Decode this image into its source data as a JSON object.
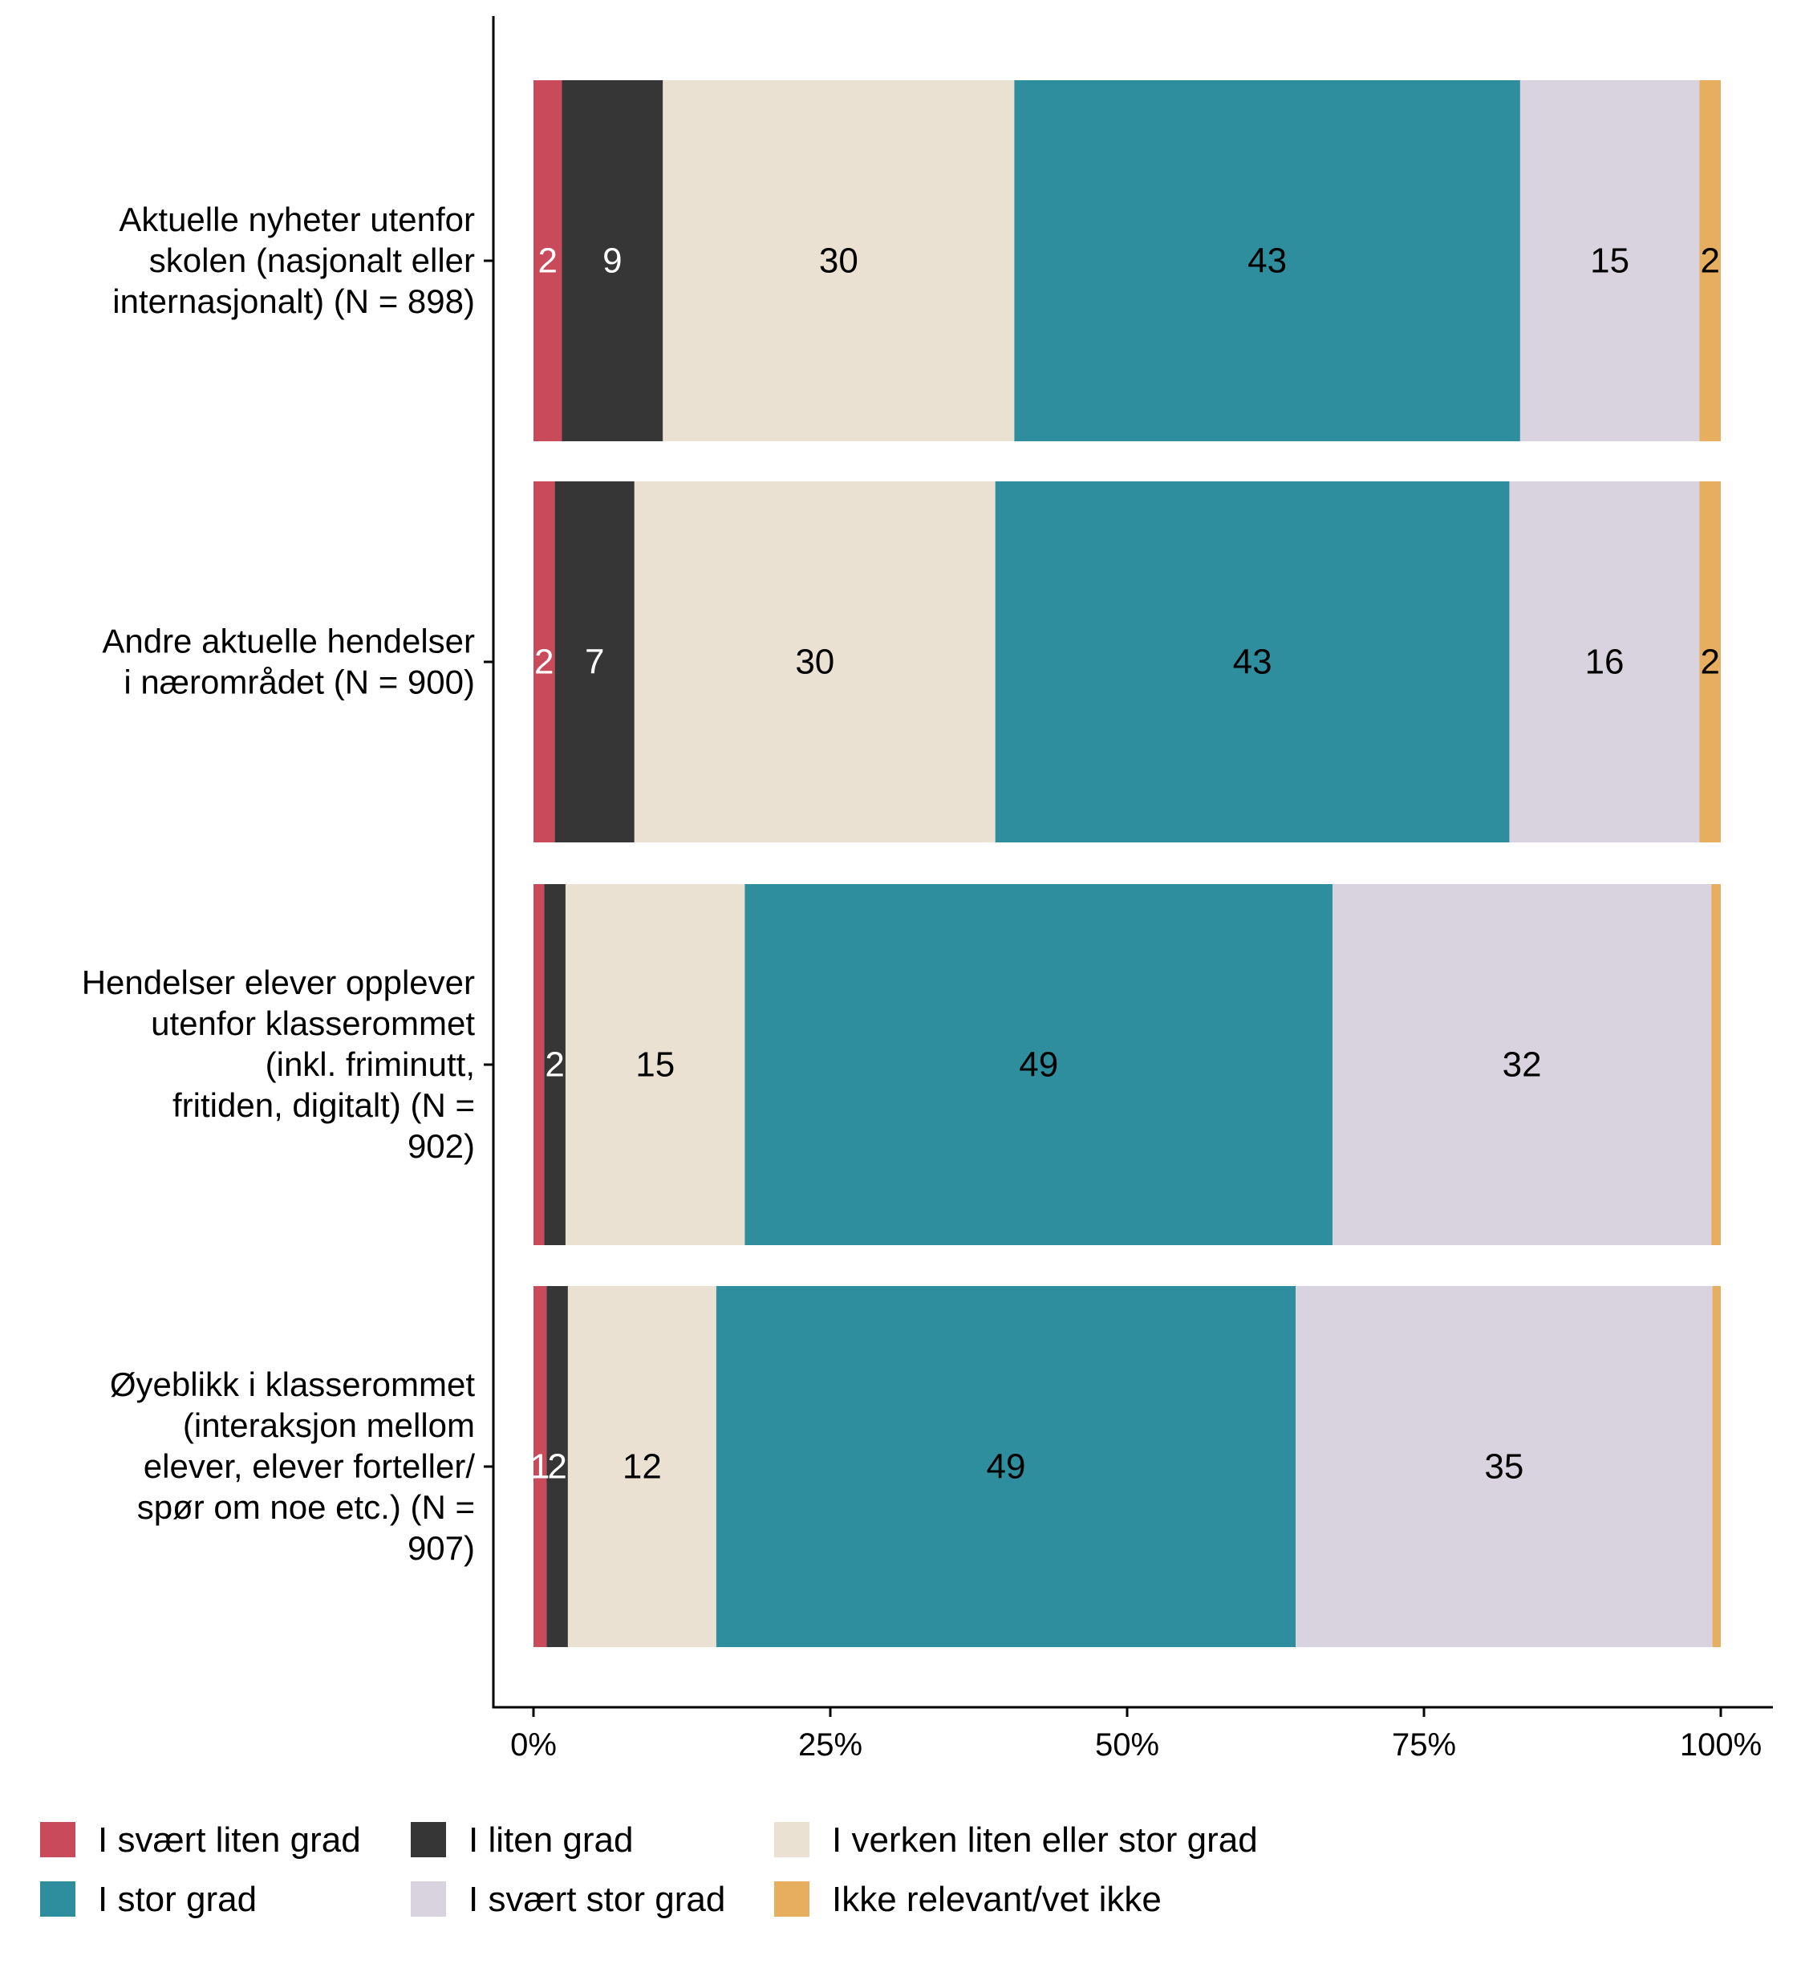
{
  "chart_data": {
    "type": "bar",
    "orientation": "horizontal",
    "stacked": true,
    "title": "",
    "xlabel": "",
    "ylabel": "",
    "xlim": [
      0,
      100
    ],
    "x_ticks": [
      "0%",
      "25%",
      "50%",
      "75%",
      "100%"
    ],
    "categories": [
      "Aktuelle nyheter utenfor skolen (nasjonalt eller internasjonalt) (N = 898)",
      "Andre aktuelle hendelser i nærområdet (N = 900)",
      "Hendelser elever opplever utenfor klasserommet (inkl. friminutt, fritiden, digitalt) (N = 902)",
      "Øyeblikk i klasserommet (interaksjon mellom elever, elever forteller/ spør om noe etc.) (N = 907)"
    ],
    "series": [
      {
        "name": "I svært liten grad",
        "color": "#C94A5A",
        "label_color": "#ffffff",
        "values": [
          2.4,
          1.8,
          0.9,
          1.1
        ],
        "labels": [
          "2",
          "2",
          "",
          "1"
        ]
      },
      {
        "name": "I liten grad",
        "color": "#363636",
        "label_color": "#ffffff",
        "values": [
          8.5,
          6.7,
          1.8,
          1.8
        ],
        "labels": [
          "9",
          "7",
          "2",
          "2"
        ]
      },
      {
        "name": "I verken liten eller stor grad",
        "color": "#EBE1D3",
        "label_color": "#000000",
        "values": [
          29.6,
          30.4,
          15.1,
          12.5
        ],
        "labels": [
          "30",
          "30",
          "15",
          "12"
        ]
      },
      {
        "name": "I stor grad",
        "color": "#2E8E9E",
        "label_color": "#000000",
        "values": [
          42.6,
          43.3,
          49.5,
          48.8
        ],
        "labels": [
          "43",
          "43",
          "49",
          "49"
        ]
      },
      {
        "name": "I svært stor grad",
        "color": "#D9D3DF",
        "label_color": "#000000",
        "values": [
          15.1,
          16.0,
          31.9,
          35.1
        ],
        "labels": [
          "15",
          "16",
          "32",
          "35"
        ]
      },
      {
        "name": "Ikke relevant/vet ikke",
        "color": "#E6AE5E",
        "label_color": "#000000",
        "values": [
          1.8,
          1.8,
          0.8,
          0.7
        ],
        "labels": [
          "2",
          "2",
          "",
          ""
        ]
      }
    ],
    "legend_position": "bottom",
    "grid": false
  }
}
